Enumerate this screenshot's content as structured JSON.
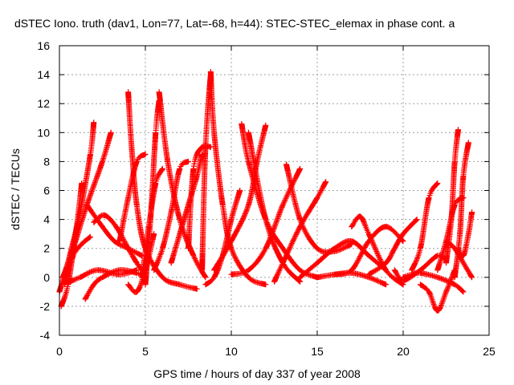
{
  "chart_data": {
    "type": "scatter",
    "title": "dSTEC Iono. truth (dav1, Lon=77, Lat=-68, h=44): STEC-STEC_elemax in phase cont. a",
    "xlabel": "GPS time / hours of day 337 of year 2008",
    "ylabel": "dSTEC  / TECUs",
    "xlim": [
      0,
      25
    ],
    "ylim": [
      -4,
      16
    ],
    "xticks": [
      0,
      5,
      10,
      15,
      20,
      25
    ],
    "yticks": [
      -4,
      -2,
      0,
      2,
      4,
      6,
      8,
      10,
      12,
      14,
      16
    ],
    "grid": true,
    "marker": "plus",
    "color": "#ff0000",
    "arcs": [
      {
        "x": [
          0.0,
          0.6,
          1.2,
          1.8,
          2.0
        ],
        "y": [
          -1.0,
          1.5,
          4.5,
          8.5,
          10.7
        ]
      },
      {
        "x": [
          0.1,
          0.5,
          1.0,
          1.3
        ],
        "y": [
          -2.0,
          -0.5,
          3.5,
          6.5
        ]
      },
      {
        "x": [
          0.2,
          0.8,
          1.6,
          2.5,
          3.0
        ],
        "y": [
          0.0,
          2.0,
          5.0,
          8.0,
          10.0
        ]
      },
      {
        "x": [
          0.3,
          0.8,
          1.3,
          1.8
        ],
        "y": [
          -0.5,
          1.5,
          2.3,
          2.8
        ]
      },
      {
        "x": [
          1.6,
          2.5,
          3.2,
          4.0,
          4.8
        ],
        "y": [
          5.0,
          3.5,
          2.5,
          2.0,
          1.5
        ]
      },
      {
        "x": [
          2.0,
          2.6,
          3.3,
          4.0,
          4.5,
          4.8
        ],
        "y": [
          3.8,
          4.3,
          3.5,
          2.0,
          1.0,
          0.5
        ]
      },
      {
        "x": [
          1.5,
          2.0,
          2.5,
          3.5,
          4.5,
          5.0
        ],
        "y": [
          -1.5,
          -0.5,
          0.0,
          0.5,
          0.3,
          0.0
        ]
      },
      {
        "x": [
          0.6,
          1.2,
          2.2,
          3.5,
          4.5
        ],
        "y": [
          -0.3,
          0.0,
          0.5,
          0.2,
          0.5
        ]
      },
      {
        "x": [
          3.5,
          4.0,
          4.5,
          5.0
        ],
        "y": [
          2.5,
          5.5,
          8.0,
          8.5
        ]
      },
      {
        "x": [
          4.0,
          4.2,
          4.5,
          5.0,
          6.0,
          7.0,
          8.0
        ],
        "y": [
          12.8,
          9.0,
          5.0,
          2.0,
          0.0,
          -0.5,
          -0.8
        ]
      },
      {
        "x": [
          4.0,
          4.5,
          5.0,
          5.5
        ],
        "y": [
          -0.5,
          -1.0,
          0.5,
          3.0
        ]
      },
      {
        "x": [
          4.8,
          5.2,
          5.6,
          6.0
        ],
        "y": [
          0.0,
          3.5,
          6.5,
          7.5
        ]
      },
      {
        "x": [
          5.0,
          5.3,
          5.6,
          5.8
        ],
        "y": [
          -0.5,
          4.0,
          10.0,
          12.2
        ]
      },
      {
        "x": [
          5.8,
          6.3,
          7.0,
          7.8,
          8.5
        ],
        "y": [
          12.8,
          8.0,
          4.0,
          1.5,
          0.0
        ]
      },
      {
        "x": [
          5.5,
          6.0,
          6.5,
          7.0,
          7.5
        ],
        "y": [
          0.5,
          2.0,
          4.5,
          7.5,
          8.0
        ]
      },
      {
        "x": [
          6.5,
          7.0,
          7.5,
          8.0,
          8.3
        ],
        "y": [
          1.0,
          3.0,
          5.0,
          7.0,
          8.5
        ]
      },
      {
        "x": [
          7.5,
          7.8,
          8.3,
          8.8
        ],
        "y": [
          2.0,
          7.5,
          9.0,
          9.0
        ]
      },
      {
        "x": [
          8.3,
          8.5,
          8.8
        ],
        "y": [
          0.5,
          9.0,
          14.0
        ]
      },
      {
        "x": [
          8.8,
          9.0,
          9.5,
          10.0,
          11.0,
          12.0
        ],
        "y": [
          14.2,
          10.0,
          5.0,
          2.0,
          0.0,
          -0.5
        ]
      },
      {
        "x": [
          8.5,
          9.0,
          9.5,
          10.0,
          10.5
        ],
        "y": [
          -0.5,
          0.0,
          1.5,
          4.0,
          6.0
        ]
      },
      {
        "x": [
          9.0,
          10.0,
          11.0,
          11.5,
          12.0
        ],
        "y": [
          0.5,
          2.5,
          5.0,
          8.0,
          10.5
        ]
      },
      {
        "x": [
          10.6,
          11.0,
          12.0,
          13.0,
          14.0,
          15.0
        ],
        "y": [
          10.6,
          8.0,
          4.0,
          2.0,
          0.5,
          0.0
        ]
      },
      {
        "x": [
          10.0,
          11.0,
          12.0,
          13.0,
          14.0
        ],
        "y": [
          0.2,
          0.5,
          2.0,
          5.0,
          7.5
        ]
      },
      {
        "x": [
          11.0,
          12.0,
          13.0,
          14.0
        ],
        "y": [
          10.0,
          4.0,
          1.0,
          -0.3
        ]
      },
      {
        "x": [
          12.5,
          13.0,
          14.0,
          15.0,
          15.5
        ],
        "y": [
          -0.3,
          1.0,
          3.5,
          5.5,
          6.6
        ]
      },
      {
        "x": [
          13.2,
          14.0,
          15.0,
          16.0,
          17.0
        ],
        "y": [
          7.8,
          4.0,
          2.0,
          1.8,
          2.3
        ]
      },
      {
        "x": [
          14.0,
          15.0,
          16.0,
          17.0,
          18.0,
          19.0
        ],
        "y": [
          0.0,
          1.0,
          2.0,
          2.5,
          1.5,
          0.5
        ]
      },
      {
        "x": [
          15.0,
          16.0,
          17.0,
          18.0,
          19.0
        ],
        "y": [
          0.0,
          0.2,
          0.3,
          0.0,
          -0.5
        ]
      },
      {
        "x": [
          16.0,
          17.0,
          18.0,
          19.0,
          20.0
        ],
        "y": [
          0.2,
          0.5,
          2.5,
          3.5,
          2.5
        ]
      },
      {
        "x": [
          17.0,
          17.5,
          18.0,
          19.0,
          20.0
        ],
        "y": [
          3.5,
          4.2,
          3.0,
          0.5,
          -0.5
        ]
      },
      {
        "x": [
          18.0,
          19.0,
          19.5,
          20.0,
          20.8
        ],
        "y": [
          0.2,
          1.0,
          2.0,
          3.0,
          4.0
        ]
      },
      {
        "x": [
          19.5,
          20.0,
          21.0,
          22.0,
          22.5
        ],
        "y": [
          0.5,
          -0.2,
          0.5,
          1.5,
          1.2
        ]
      },
      {
        "x": [
          20.0,
          20.5,
          21.0,
          22.0,
          23.0,
          23.5
        ],
        "y": [
          0.0,
          0.2,
          0.3,
          0.0,
          -0.5,
          -1.0
        ]
      },
      {
        "x": [
          20.5,
          21.0,
          21.5,
          22.0
        ],
        "y": [
          0.5,
          2.0,
          5.5,
          6.5
        ]
      },
      {
        "x": [
          21.0,
          21.5,
          22.0,
          22.5,
          23.0
        ],
        "y": [
          -0.5,
          -1.0,
          -2.3,
          -1.0,
          0.5
        ]
      },
      {
        "x": [
          22.0,
          22.5,
          23.0,
          23.5
        ],
        "y": [
          0.5,
          2.5,
          5.0,
          5.5
        ]
      },
      {
        "x": [
          22.5,
          22.8,
          23.0,
          23.2
        ],
        "y": [
          1.0,
          4.0,
          8.0,
          10.2
        ]
      },
      {
        "x": [
          23.0,
          23.3,
          23.5,
          23.8
        ],
        "y": [
          0.0,
          3.0,
          7.0,
          9.3
        ]
      },
      {
        "x": [
          23.2,
          23.5,
          23.8,
          24.0
        ],
        "y": [
          2.0,
          1.5,
          3.0,
          4.5
        ]
      },
      {
        "x": [
          22.5,
          23.0,
          23.5,
          24.0
        ],
        "y": [
          2.5,
          2.0,
          1.0,
          0.0
        ]
      }
    ]
  }
}
